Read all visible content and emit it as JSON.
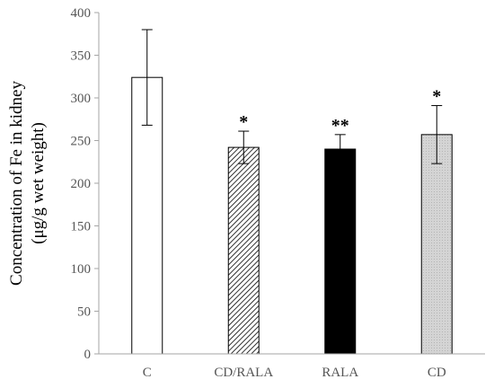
{
  "chart_data": {
    "type": "bar",
    "title": "",
    "xlabel": "",
    "ylabel_lines": [
      "Concentration of Fe in kidney",
      "(μg/g wet weight)"
    ],
    "ylim": [
      0,
      400
    ],
    "yticks": [
      "0",
      "50",
      "100",
      "150",
      "200",
      "250",
      "300",
      "350",
      "400"
    ],
    "categories": [
      "C",
      "CD/RALA",
      "RALA",
      "CD"
    ],
    "values": [
      324,
      242,
      240,
      257
    ],
    "errors": [
      56,
      19,
      17,
      34
    ],
    "significance": [
      "",
      "*",
      "**",
      "*"
    ],
    "fills": [
      "white",
      "hatch",
      "black",
      "dots"
    ],
    "grid": false,
    "colors": {
      "bar_stroke": "#000000",
      "black_fill": "#000000",
      "dots_fill": "#d9d9d9",
      "axis": "#a6a6a6"
    }
  }
}
